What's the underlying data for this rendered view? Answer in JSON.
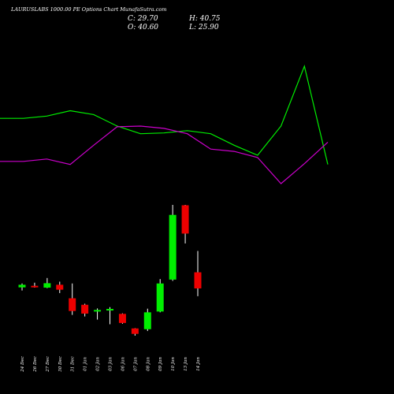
{
  "header": {
    "title": "LAURUSLABS 1000.00  PE Options  Chart MunafaSutra.com",
    "close_text": "C: 29.70",
    "open_text": "O: 40.60",
    "high_text": "H: 40.75",
    "low_text": "L: 25.90"
  },
  "colors": {
    "background": "#000000",
    "up": "#00ee00",
    "down": "#ee0000",
    "wick": "#ffffff",
    "green_line": "#00ee00",
    "magenta_line": "#cc00cc"
  },
  "chart_data": {
    "type": "candlestick",
    "categories": [
      "24 Dec",
      "26 Dec",
      "27 Dec",
      "30 Dec",
      "31 Dec",
      "01 Jan",
      "02 Jan",
      "03 Jan",
      "06 Jan",
      "07 Jan",
      "08 Jan",
      "09 Jan",
      "10 Jan",
      "13 Jan",
      "14 Jan"
    ],
    "candles": [
      {
        "open": 9.0,
        "high": 10.5,
        "low": 7.8,
        "close": 10.0
      },
      {
        "open": 9.6,
        "high": 10.8,
        "low": 8.9,
        "close": 9.2
      },
      {
        "open": 8.9,
        "high": 12.6,
        "low": 8.7,
        "close": 10.6
      },
      {
        "open": 10.0,
        "high": 11.2,
        "low": 6.8,
        "close": 8.1
      },
      {
        "open": 4.8,
        "high": 10.5,
        "low": -1.6,
        "close": -0.1
      },
      {
        "open": 2.3,
        "high": 2.7,
        "low": -2.2,
        "close": -1.1
      },
      {
        "open": -0.3,
        "high": 0.9,
        "low": -3.4,
        "close": 0.3
      },
      {
        "open": 0.1,
        "high": 1.4,
        "low": -5.2,
        "close": 0.7
      },
      {
        "open": -1.2,
        "high": -1.0,
        "low": -5.0,
        "close": -4.7
      },
      {
        "open": -6.8,
        "high": -6.7,
        "low": -9.6,
        "close": -8.9
      },
      {
        "open": -7.1,
        "high": 0.8,
        "low": -7.8,
        "close": -0.6
      },
      {
        "open": -0.3,
        "high": 12.2,
        "low": -0.6,
        "close": 10.5
      },
      {
        "open": 12.0,
        "high": 40.75,
        "low": 11.5,
        "close": 36.9
      },
      {
        "open": 40.6,
        "high": 40.75,
        "low": 25.9,
        "close": 29.7
      },
      {
        "open": 14.8,
        "high": 23.0,
        "low": 5.6,
        "close": 8.6
      }
    ],
    "lines": [
      {
        "color": "green",
        "values": [
          100.0,
          100.0,
          100.3,
          101.0,
          100.5,
          99.0,
          98.0,
          98.1,
          98.4,
          98.0,
          96.5,
          95.2,
          99.0,
          106.8,
          94.0
        ]
      },
      {
        "color": "magenta",
        "values": [
          94.4,
          94.4,
          94.7,
          94.0,
          96.5,
          98.9,
          99.0,
          98.7,
          98.0,
          96.0,
          95.7,
          94.9,
          91.5,
          94.1,
          96.9
        ]
      }
    ]
  }
}
